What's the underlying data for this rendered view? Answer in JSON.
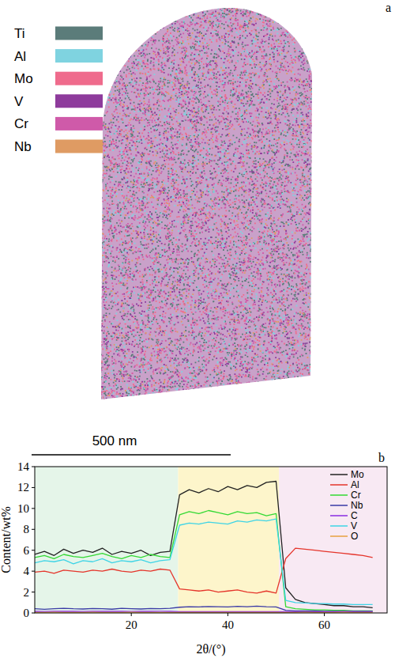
{
  "panel_a": {
    "label": "a",
    "legend": [
      {
        "name": "Ti",
        "color": "#5b7c7a"
      },
      {
        "name": "Al",
        "color": "#7fd3e0"
      },
      {
        "name": "Mo",
        "color": "#ef6b8c"
      },
      {
        "name": "V",
        "color": "#8e3b9c"
      },
      {
        "name": "Cr",
        "color": "#cf5aa9"
      },
      {
        "name": "Nb",
        "color": "#df9b63"
      }
    ],
    "scale_bar": "500 nm"
  },
  "panel_b": {
    "label": "b"
  },
  "chart_data": {
    "type": "line",
    "x_label": "2θ/(°)",
    "y_label": "Content/wt%",
    "xlim": [
      0,
      73
    ],
    "xticks": [
      20,
      40,
      60
    ],
    "ylim": [
      0,
      14
    ],
    "yticks": [
      0,
      2,
      4,
      6,
      8,
      10,
      12,
      14
    ],
    "grid": false,
    "legend": "top-right",
    "regions": [
      {
        "from": 0,
        "to": 29.7,
        "color": "#e5f5e9"
      },
      {
        "from": 29.7,
        "to": 50.6,
        "color": "#fdf5cb"
      },
      {
        "from": 50.6,
        "to": 73,
        "color": "#f8e9f3"
      }
    ],
    "x": [
      0,
      2,
      4,
      6,
      8,
      10,
      12,
      14,
      16,
      18,
      20,
      22,
      24,
      26,
      28,
      30,
      32,
      34,
      36,
      38,
      40,
      42,
      44,
      46,
      48,
      50,
      52,
      54,
      56,
      58,
      60,
      62,
      64,
      66,
      68,
      70
    ],
    "series": [
      {
        "name": "Mo",
        "color": "#222222",
        "values": [
          5.6,
          5.9,
          5.5,
          6.1,
          5.7,
          6.0,
          5.8,
          6.2,
          5.6,
          5.9,
          5.7,
          6.0,
          5.5,
          5.8,
          5.9,
          11.3,
          11.8,
          11.5,
          11.9,
          11.6,
          12.1,
          11.8,
          12.2,
          12.0,
          12.5,
          12.6,
          2.4,
          1.3,
          1.0,
          0.9,
          0.8,
          0.7,
          0.7,
          0.6,
          0.6,
          0.5
        ]
      },
      {
        "name": "Al",
        "color": "#e5352b",
        "values": [
          3.9,
          4.0,
          3.8,
          4.1,
          4.0,
          3.9,
          4.1,
          4.0,
          4.2,
          4.0,
          3.9,
          4.1,
          4.0,
          4.2,
          4.1,
          2.3,
          2.2,
          2.1,
          2.2,
          2.0,
          2.1,
          2.2,
          2.0,
          1.9,
          2.1,
          1.9,
          5.2,
          6.2,
          6.1,
          6.0,
          5.9,
          5.8,
          5.7,
          5.6,
          5.5,
          5.3
        ]
      },
      {
        "name": "Cr",
        "color": "#33d933",
        "values": [
          5.3,
          5.5,
          5.2,
          5.6,
          5.4,
          5.3,
          5.5,
          5.7,
          5.4,
          5.2,
          5.5,
          5.3,
          5.6,
          5.4,
          5.3,
          9.4,
          9.7,
          9.5,
          9.8,
          9.6,
          9.4,
          9.7,
          9.5,
          9.6,
          9.3,
          9.5,
          0.6,
          0.4,
          0.35,
          0.3,
          0.3,
          0.25,
          0.25,
          0.2,
          0.2,
          0.2
        ]
      },
      {
        "name": "Nb",
        "color": "#3a3aa6",
        "values": [
          0.4,
          0.35,
          0.4,
          0.45,
          0.4,
          0.38,
          0.42,
          0.4,
          0.36,
          0.44,
          0.4,
          0.38,
          0.42,
          0.4,
          0.45,
          0.55,
          0.6,
          0.58,
          0.62,
          0.6,
          0.57,
          0.63,
          0.6,
          0.65,
          0.6,
          0.58,
          0.25,
          0.2,
          0.2,
          0.2,
          0.15,
          0.15,
          0.15,
          0.15,
          0.15,
          0.15
        ]
      },
      {
        "name": "C",
        "color": "#8a2be2",
        "values": [
          0.15,
          0.14,
          0.16,
          0.15,
          0.15,
          0.14,
          0.16,
          0.15,
          0.15,
          0.16,
          0.14,
          0.15,
          0.15,
          0.16,
          0.15,
          0.12,
          0.13,
          0.12,
          0.12,
          0.13,
          0.12,
          0.12,
          0.13,
          0.12,
          0.12,
          0.13,
          0.12,
          0.12,
          0.11,
          0.12,
          0.12,
          0.11,
          0.12,
          0.12,
          0.11,
          0.12
        ]
      },
      {
        "name": "V",
        "color": "#3ed4e6",
        "values": [
          4.8,
          5.0,
          4.9,
          5.1,
          4.7,
          5.0,
          4.9,
          5.2,
          4.8,
          5.0,
          4.9,
          5.1,
          4.8,
          5.0,
          5.1,
          8.4,
          8.6,
          8.5,
          8.7,
          8.6,
          8.5,
          8.8,
          8.7,
          8.9,
          8.8,
          9.0,
          1.2,
          1.0,
          0.95,
          0.9,
          0.9,
          0.85,
          0.85,
          0.8,
          0.8,
          0.8
        ]
      },
      {
        "name": "O",
        "color": "#e8a040",
        "values": [
          0.05,
          0.05,
          0.06,
          0.05,
          0.05,
          0.05,
          0.06,
          0.05,
          0.05,
          0.05,
          0.06,
          0.05,
          0.05,
          0.05,
          0.05,
          0.04,
          0.05,
          0.04,
          0.04,
          0.05,
          0.04,
          0.04,
          0.05,
          0.04,
          0.04,
          0.05,
          0.05,
          0.05,
          0.06,
          0.05,
          0.05,
          0.05,
          0.06,
          0.05,
          0.05,
          0.05
        ]
      }
    ]
  }
}
